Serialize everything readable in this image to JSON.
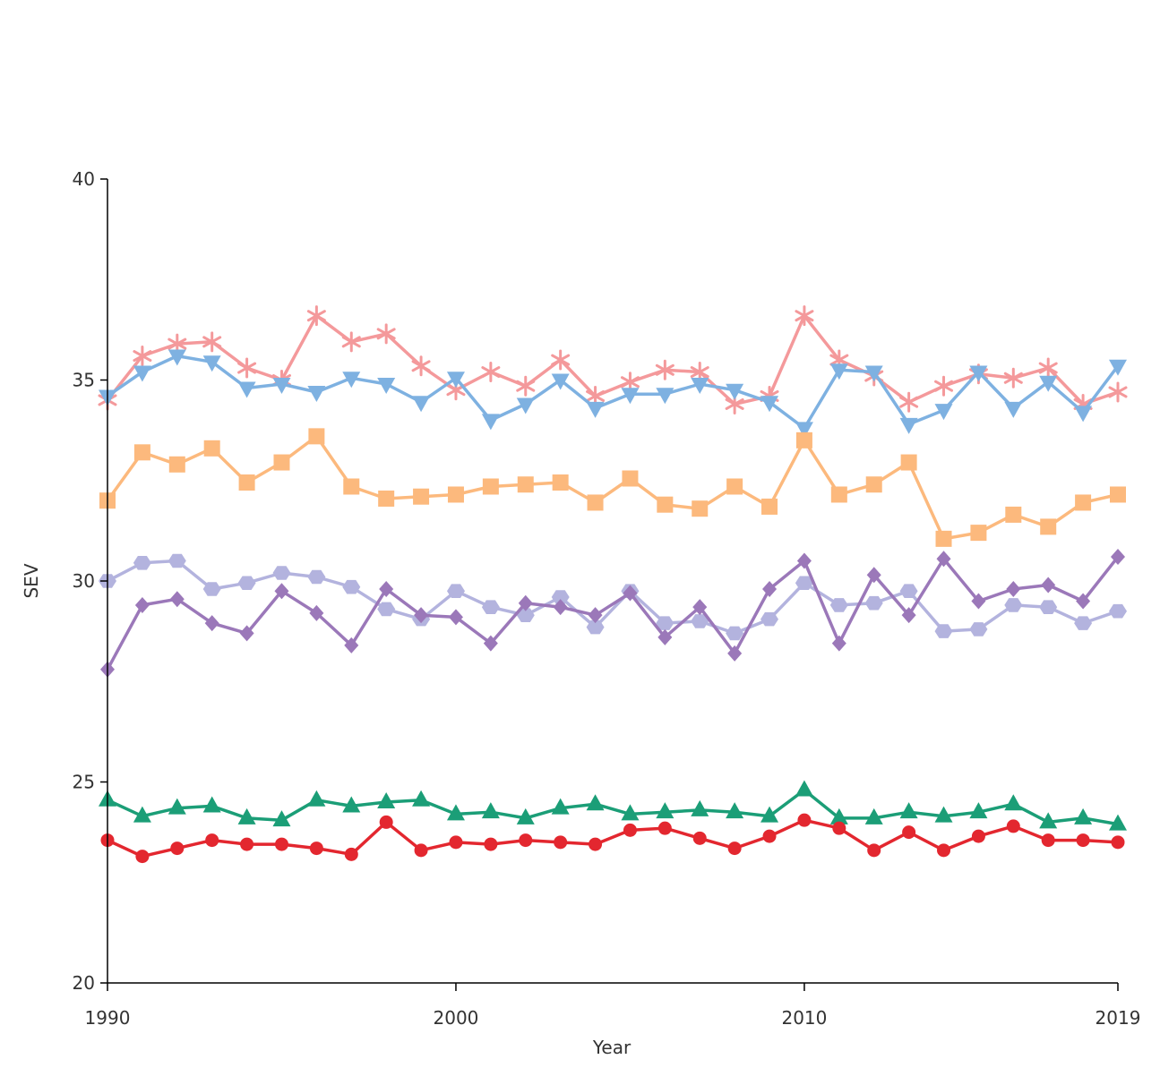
{
  "chart_data": {
    "type": "line",
    "xlabel": "Year",
    "ylabel": "SEV",
    "xlim": [
      1990,
      2019
    ],
    "ylim": [
      20,
      40
    ],
    "x_ticks": [
      "1990",
      "2000",
      "2010",
      "2019"
    ],
    "y_ticks": [
      "20",
      "25",
      "30",
      "35",
      "40"
    ],
    "grid": false,
    "legend": "none",
    "x": [
      1990,
      1991,
      1992,
      1993,
      1994,
      1995,
      1996,
      1997,
      1998,
      1999,
      2000,
      2001,
      2002,
      2003,
      2004,
      2005,
      2006,
      2007,
      2008,
      2009,
      2010,
      2011,
      2012,
      2013,
      2014,
      2015,
      2016,
      2017,
      2018,
      2019
    ],
    "series": [
      {
        "marker": "asterisk",
        "color": "#f4999b",
        "values": [
          34.5,
          35.6,
          35.9,
          35.95,
          35.3,
          35.0,
          36.6,
          35.95,
          36.15,
          35.35,
          34.75,
          35.2,
          34.85,
          35.5,
          34.6,
          34.95,
          35.25,
          35.2,
          34.4,
          34.6,
          36.6,
          35.5,
          35.1,
          34.45,
          34.85,
          35.15,
          35.05,
          35.3,
          34.4,
          34.7
        ]
      },
      {
        "marker": "triangle-down",
        "color": "#7eb1e1",
        "values": [
          34.6,
          35.2,
          35.6,
          35.45,
          34.8,
          34.9,
          34.7,
          35.05,
          34.9,
          34.45,
          35.05,
          34.0,
          34.4,
          35.0,
          34.3,
          34.65,
          34.65,
          34.9,
          34.75,
          34.45,
          33.8,
          35.25,
          35.2,
          33.9,
          34.25,
          35.2,
          34.3,
          34.95,
          34.2,
          35.35
        ]
      },
      {
        "marker": "square",
        "color": "#fcb97d",
        "values": [
          32.0,
          33.2,
          32.9,
          33.3,
          32.45,
          32.95,
          33.6,
          32.35,
          32.05,
          32.1,
          32.15,
          32.35,
          32.4,
          32.45,
          31.95,
          32.55,
          31.9,
          31.8,
          32.35,
          31.85,
          33.5,
          32.15,
          32.4,
          32.95,
          31.05,
          31.2,
          31.65,
          31.35,
          31.95,
          32.15
        ]
      },
      {
        "marker": "hexagon",
        "color": "#b3b3de",
        "values": [
          30.0,
          30.45,
          30.5,
          29.8,
          29.95,
          30.2,
          30.1,
          29.85,
          29.3,
          29.05,
          29.75,
          29.35,
          29.15,
          29.6,
          28.85,
          29.75,
          28.95,
          29.0,
          28.7,
          29.05,
          29.95,
          29.4,
          29.45,
          29.75,
          28.75,
          28.8,
          29.4,
          29.35,
          28.95,
          29.25
        ]
      },
      {
        "marker": "diamond",
        "color": "#9b78b9",
        "values": [
          27.8,
          29.4,
          29.55,
          28.95,
          28.7,
          29.75,
          29.2,
          28.4,
          29.8,
          29.15,
          29.1,
          28.45,
          29.45,
          29.35,
          29.15,
          29.7,
          28.6,
          29.35,
          28.2,
          29.8,
          30.5,
          28.45,
          30.15,
          29.15,
          30.55,
          29.5,
          29.8,
          29.9,
          29.5,
          30.6
        ]
      },
      {
        "marker": "triangle-up",
        "color": "#1b9e77",
        "values": [
          24.55,
          24.15,
          24.35,
          24.4,
          24.1,
          24.05,
          24.55,
          24.4,
          24.5,
          24.55,
          24.2,
          24.25,
          24.1,
          24.35,
          24.45,
          24.2,
          24.25,
          24.3,
          24.25,
          24.15,
          24.8,
          24.1,
          24.1,
          24.25,
          24.15,
          24.25,
          24.45,
          24.0,
          24.1,
          23.95
        ]
      },
      {
        "marker": "circle",
        "color": "#e3272f",
        "values": [
          23.55,
          23.15,
          23.35,
          23.55,
          23.45,
          23.45,
          23.35,
          23.2,
          24.0,
          23.3,
          23.5,
          23.45,
          23.55,
          23.5,
          23.45,
          23.8,
          23.85,
          23.6,
          23.35,
          23.65,
          24.05,
          23.85,
          23.3,
          23.75,
          23.3,
          23.65,
          23.9,
          23.55,
          23.55,
          23.5
        ]
      }
    ]
  }
}
